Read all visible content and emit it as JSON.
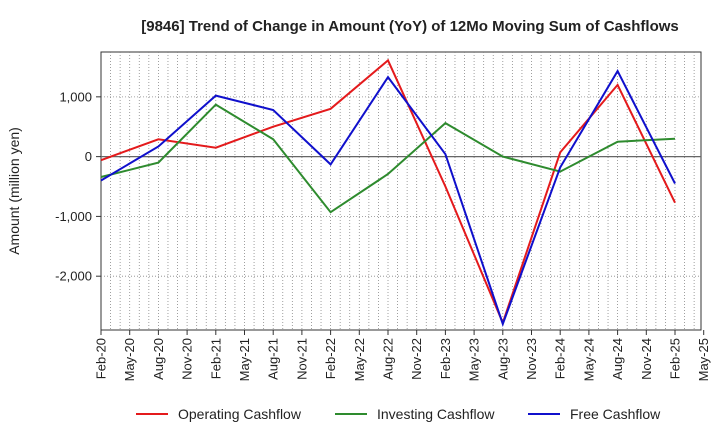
{
  "chart_data": {
    "type": "line",
    "title": "[9846]  Trend of Change in Amount (YoY) of 12Mo Moving Sum of Cashflows",
    "xlabel": "",
    "ylabel": "Amount (million yen)",
    "ylim": [
      -2900,
      1750
    ],
    "yticks": [
      1000,
      0,
      -1000,
      -2000
    ],
    "ytick_labels": [
      "1,000",
      "0",
      "-1,000",
      "-2,000"
    ],
    "categories": [
      "Feb-20",
      "May-20",
      "Aug-20",
      "Nov-20",
      "Feb-21",
      "May-21",
      "Aug-21",
      "Nov-21",
      "Feb-22",
      "May-22",
      "Aug-22",
      "Nov-22",
      "Feb-23",
      "May-23",
      "Aug-23",
      "Nov-23",
      "Feb-24",
      "May-24",
      "Aug-24",
      "Nov-24",
      "Feb-25",
      "May-25"
    ],
    "grid": true,
    "legend_position": "bottom",
    "series": [
      {
        "name": "Operating Cashflow",
        "color": "#e41a1c",
        "points": [
          {
            "x": "Feb-20",
            "y": -60
          },
          {
            "x": "Aug-20",
            "y": 290
          },
          {
            "x": "Feb-21",
            "y": 150
          },
          {
            "x": "Aug-21",
            "y": 500
          },
          {
            "x": "Feb-22",
            "y": 800
          },
          {
            "x": "Aug-22",
            "y": 1610
          },
          {
            "x": "Feb-23",
            "y": -500
          },
          {
            "x": "Aug-23",
            "y": -2780
          },
          {
            "x": "Feb-24",
            "y": 70
          },
          {
            "x": "Aug-24",
            "y": 1200
          },
          {
            "x": "Feb-25",
            "y": -770
          }
        ]
      },
      {
        "name": "Investing Cashflow",
        "color": "#2e8b2e",
        "points": [
          {
            "x": "Feb-20",
            "y": -340
          },
          {
            "x": "Aug-20",
            "y": -100
          },
          {
            "x": "Feb-21",
            "y": 870
          },
          {
            "x": "Aug-21",
            "y": 290
          },
          {
            "x": "Feb-22",
            "y": -930
          },
          {
            "x": "Aug-22",
            "y": -290
          },
          {
            "x": "Feb-23",
            "y": 560
          },
          {
            "x": "Aug-23",
            "y": 0
          },
          {
            "x": "Feb-24",
            "y": -250
          },
          {
            "x": "Aug-24",
            "y": 250
          },
          {
            "x": "Feb-25",
            "y": 300
          }
        ]
      },
      {
        "name": "Free Cashflow",
        "color": "#1010cc",
        "points": [
          {
            "x": "Feb-20",
            "y": -400
          },
          {
            "x": "Aug-20",
            "y": 170
          },
          {
            "x": "Feb-21",
            "y": 1020
          },
          {
            "x": "Aug-21",
            "y": 780
          },
          {
            "x": "Feb-22",
            "y": -130
          },
          {
            "x": "Aug-22",
            "y": 1330
          },
          {
            "x": "Feb-23",
            "y": 40
          },
          {
            "x": "Aug-23",
            "y": -2800
          },
          {
            "x": "Feb-24",
            "y": -180
          },
          {
            "x": "Aug-24",
            "y": 1430
          },
          {
            "x": "Feb-25",
            "y": -450
          }
        ]
      }
    ]
  }
}
